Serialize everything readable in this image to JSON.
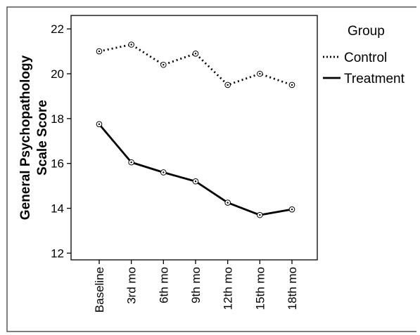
{
  "chart_data": {
    "type": "line",
    "title": "",
    "xlabel": "",
    "ylabel_lines": [
      "General Psychopathology",
      "Scale Score"
    ],
    "categories": [
      "Baseline",
      "3rd mo",
      "6th mo",
      "9th mo",
      "12th mo",
      "15th mo",
      "18th mo"
    ],
    "ylim": [
      11.7,
      22.6
    ],
    "yticks": [
      12,
      14,
      16,
      18,
      20,
      22
    ],
    "grid": false,
    "legend": {
      "title": "Group",
      "placement": "right"
    },
    "series": [
      {
        "name": "Control",
        "style": "dotted",
        "color": "#000000",
        "values": [
          21.0,
          21.3,
          20.4,
          20.9,
          19.5,
          20.0,
          19.5
        ]
      },
      {
        "name": "Treatment",
        "style": "solid",
        "color": "#000000",
        "values": [
          17.75,
          16.05,
          15.6,
          15.2,
          14.25,
          13.7,
          13.95
        ]
      }
    ]
  }
}
